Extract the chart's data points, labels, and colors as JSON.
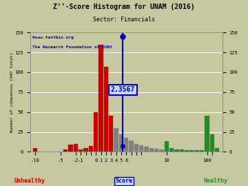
{
  "title": "Z''-Score Histogram for UNAM (2016)",
  "subtitle": "Sector: Financials",
  "unam_score_label": "2.3567",
  "background_color": "#c8c8a0",
  "grid_color": "#ffffff",
  "bar_data": [
    {
      "bin": -12,
      "height": 5,
      "color": "#cc0000"
    },
    {
      "bin": -11,
      "height": 0,
      "color": "#cc0000"
    },
    {
      "bin": -10,
      "height": 0,
      "color": "#cc0000"
    },
    {
      "bin": -9,
      "height": 0,
      "color": "#cc0000"
    },
    {
      "bin": -8,
      "height": 0,
      "color": "#cc0000"
    },
    {
      "bin": -7,
      "height": 0,
      "color": "#cc0000"
    },
    {
      "bin": -6,
      "height": 3,
      "color": "#cc0000"
    },
    {
      "bin": -5,
      "height": 9,
      "color": "#cc0000"
    },
    {
      "bin": -4,
      "height": 10,
      "color": "#cc0000"
    },
    {
      "bin": -3,
      "height": 3,
      "color": "#cc0000"
    },
    {
      "bin": -2,
      "height": 5,
      "color": "#cc0000"
    },
    {
      "bin": -1,
      "height": 7,
      "color": "#cc0000"
    },
    {
      "bin": 0,
      "height": 50,
      "color": "#cc0000"
    },
    {
      "bin": 1,
      "height": 135,
      "color": "#cc0000"
    },
    {
      "bin": 2,
      "height": 107,
      "color": "#cc0000"
    },
    {
      "bin": 3,
      "height": 45,
      "color": "#cc0000"
    },
    {
      "bin": 4,
      "height": 30,
      "color": "#808080"
    },
    {
      "bin": 5,
      "height": 22,
      "color": "#808080"
    },
    {
      "bin": 6,
      "height": 18,
      "color": "#808080"
    },
    {
      "bin": 7,
      "height": 14,
      "color": "#808080"
    },
    {
      "bin": 8,
      "height": 10,
      "color": "#808080"
    },
    {
      "bin": 9,
      "height": 8,
      "color": "#808080"
    },
    {
      "bin": 10,
      "height": 6,
      "color": "#808080"
    },
    {
      "bin": 11,
      "height": 5,
      "color": "#808080"
    },
    {
      "bin": 12,
      "height": 4,
      "color": "#808080"
    },
    {
      "bin": 13,
      "height": 3,
      "color": "#808080"
    },
    {
      "bin": 14,
      "height": 13,
      "color": "#228B22"
    },
    {
      "bin": 15,
      "height": 5,
      "color": "#228B22"
    },
    {
      "bin": 16,
      "height": 3,
      "color": "#228B22"
    },
    {
      "bin": 17,
      "height": 3,
      "color": "#228B22"
    },
    {
      "bin": 18,
      "height": 2,
      "color": "#228B22"
    },
    {
      "bin": 19,
      "height": 2,
      "color": "#228B22"
    },
    {
      "bin": 20,
      "height": 2,
      "color": "#228B22"
    },
    {
      "bin": 21,
      "height": 2,
      "color": "#228B22"
    },
    {
      "bin": 22,
      "height": 45,
      "color": "#228B22"
    },
    {
      "bin": 23,
      "height": 22,
      "color": "#228B22"
    },
    {
      "bin": 24,
      "height": 5,
      "color": "#228B22"
    }
  ],
  "xtick_bins": [
    -12,
    -7,
    -4,
    -3,
    -2,
    -1,
    0,
    1,
    2,
    3,
    4,
    5,
    6,
    7,
    8,
    9,
    14,
    22,
    23
  ],
  "xtick_labels": [
    "-10",
    "-5",
    "-2",
    "-1",
    "",
    "",
    "0",
    "1",
    "2",
    "3",
    "4",
    "5",
    "6",
    "",
    "",
    "",
    "10",
    "100",
    ""
  ],
  "score_bin": 5.3567,
  "ylim": [
    0,
    150
  ],
  "yticks": [
    0,
    25,
    50,
    75,
    100,
    125,
    150
  ],
  "annotation_color": "#0000bb",
  "annotation_bg": "#c8d8ff",
  "copyright_text": "©www.textbiz.org",
  "foundation_text": "The Research Foundation of SUNY",
  "unhealthy_label": "Unhealthy",
  "healthy_label": "Healthy",
  "score_label": "Score"
}
